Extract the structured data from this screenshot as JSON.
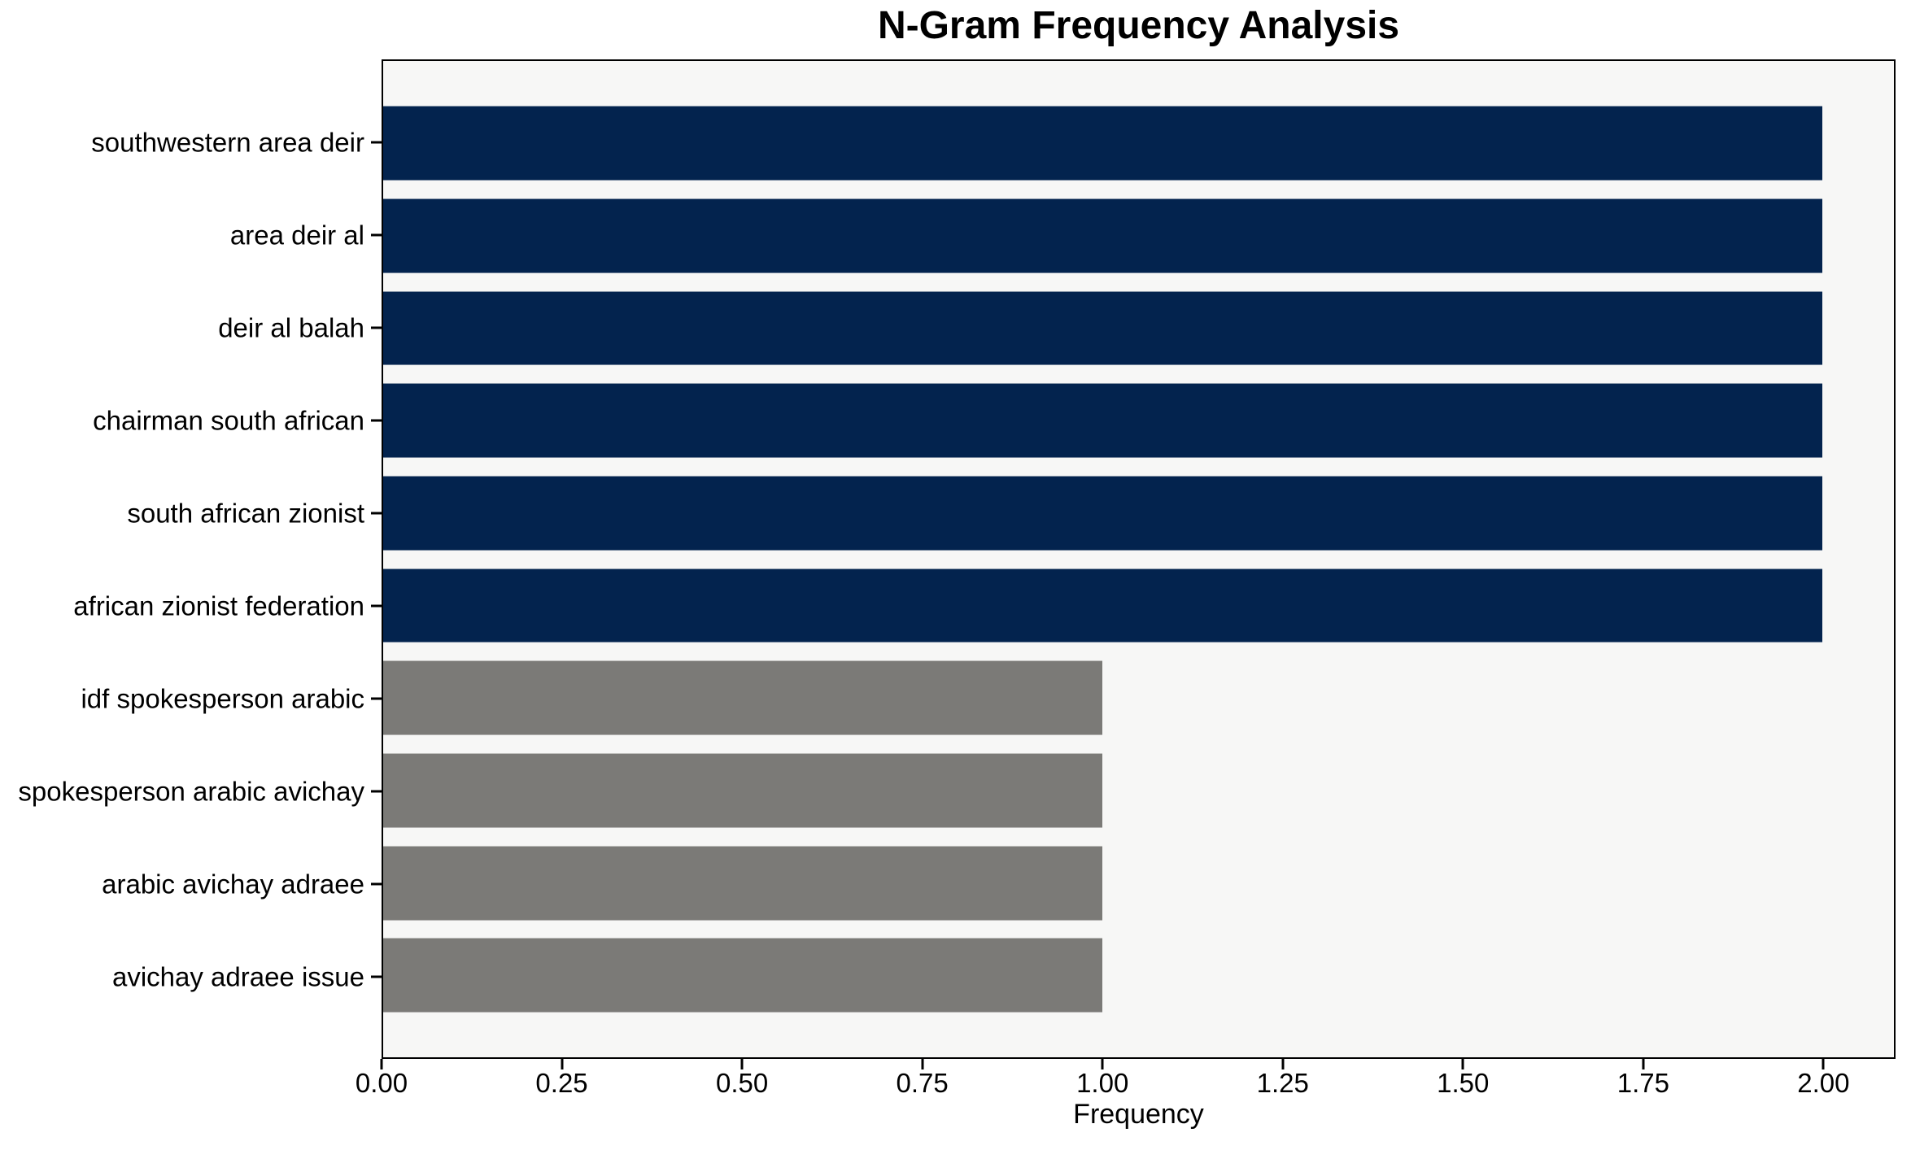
{
  "chart_data": {
    "type": "bar",
    "orientation": "horizontal",
    "title": "N-Gram Frequency Analysis",
    "xlabel": "Frequency",
    "ylabel": "",
    "categories": [
      "southwestern area deir",
      "area deir al",
      "deir al balah",
      "chairman south african",
      "south african zionist",
      "african zionist federation",
      "idf spokesperson arabic",
      "spokesperson arabic avichay",
      "arabic avichay adraee",
      "avichay adraee issue"
    ],
    "values": [
      2,
      2,
      2,
      2,
      2,
      2,
      1,
      1,
      1,
      1
    ],
    "bar_colors": [
      "#03234e",
      "#03234e",
      "#03234e",
      "#03234e",
      "#03234e",
      "#03234e",
      "#7b7a77",
      "#7b7a77",
      "#7b7a77",
      "#7b7a77"
    ],
    "xlim": [
      0,
      2.1
    ],
    "xticks": {
      "values": [
        0,
        0.25,
        0.5,
        0.75,
        1.0,
        1.25,
        1.5,
        1.75,
        2.0
      ],
      "labels": [
        "0.00",
        "0.25",
        "0.50",
        "0.75",
        "1.00",
        "1.25",
        "1.50",
        "1.75",
        "2.00"
      ]
    },
    "grid": false,
    "legend": null,
    "colors": {
      "frequent_bar": "#03234e",
      "infrequent_bar": "#7b7a77",
      "plot_background": "#f7f7f6",
      "figure_background": "#ffffff",
      "spine": "#000000",
      "text": "#000000"
    }
  }
}
